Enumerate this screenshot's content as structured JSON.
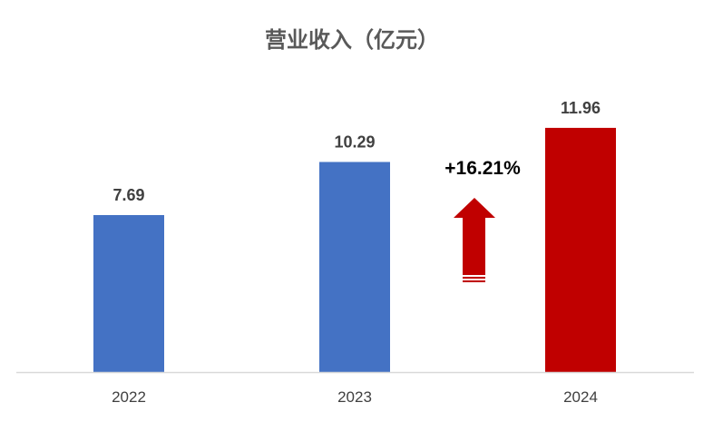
{
  "chart_data": {
    "type": "bar",
    "title": "营业收入（亿元）",
    "categories": [
      "2022",
      "2023",
      "2024"
    ],
    "values": [
      7.69,
      10.29,
      11.96
    ],
    "data_labels": [
      "7.69",
      "10.29",
      "11.96"
    ],
    "colors": [
      "#4472C4",
      "#4472C4",
      "#C00000"
    ],
    "ylim": [
      0,
      12
    ],
    "grid": false,
    "legend": "none",
    "annotation": {
      "text": "+16.21%",
      "icon": "up-arrow-icon",
      "color": "#C00000"
    }
  }
}
